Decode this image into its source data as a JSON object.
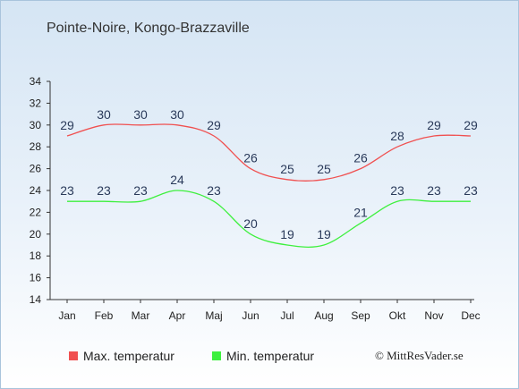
{
  "chart_data": {
    "type": "line",
    "title": "Pointe-Noire, Kongo-Brazzaville",
    "categories": [
      "Jan",
      "Feb",
      "Mar",
      "Apr",
      "Maj",
      "Jun",
      "Jul",
      "Aug",
      "Sep",
      "Okt",
      "Nov",
      "Dec"
    ],
    "series": [
      {
        "name": "Max. temperatur",
        "color": "#f05050",
        "values": [
          29,
          30,
          30,
          30,
          29,
          26,
          25,
          25,
          26,
          28,
          29,
          29
        ]
      },
      {
        "name": "Min. temperatur",
        "color": "#3ef03e",
        "values": [
          23,
          23,
          23,
          24,
          23,
          20,
          19,
          19,
          21,
          23,
          23,
          23
        ]
      }
    ],
    "ylim": [
      14,
      34
    ],
    "yticks": [
      14,
      16,
      18,
      20,
      22,
      24,
      26,
      28,
      30,
      32,
      34
    ],
    "grid": false,
    "legend_position": "bottom"
  },
  "copyright": "© MittResVader.se"
}
